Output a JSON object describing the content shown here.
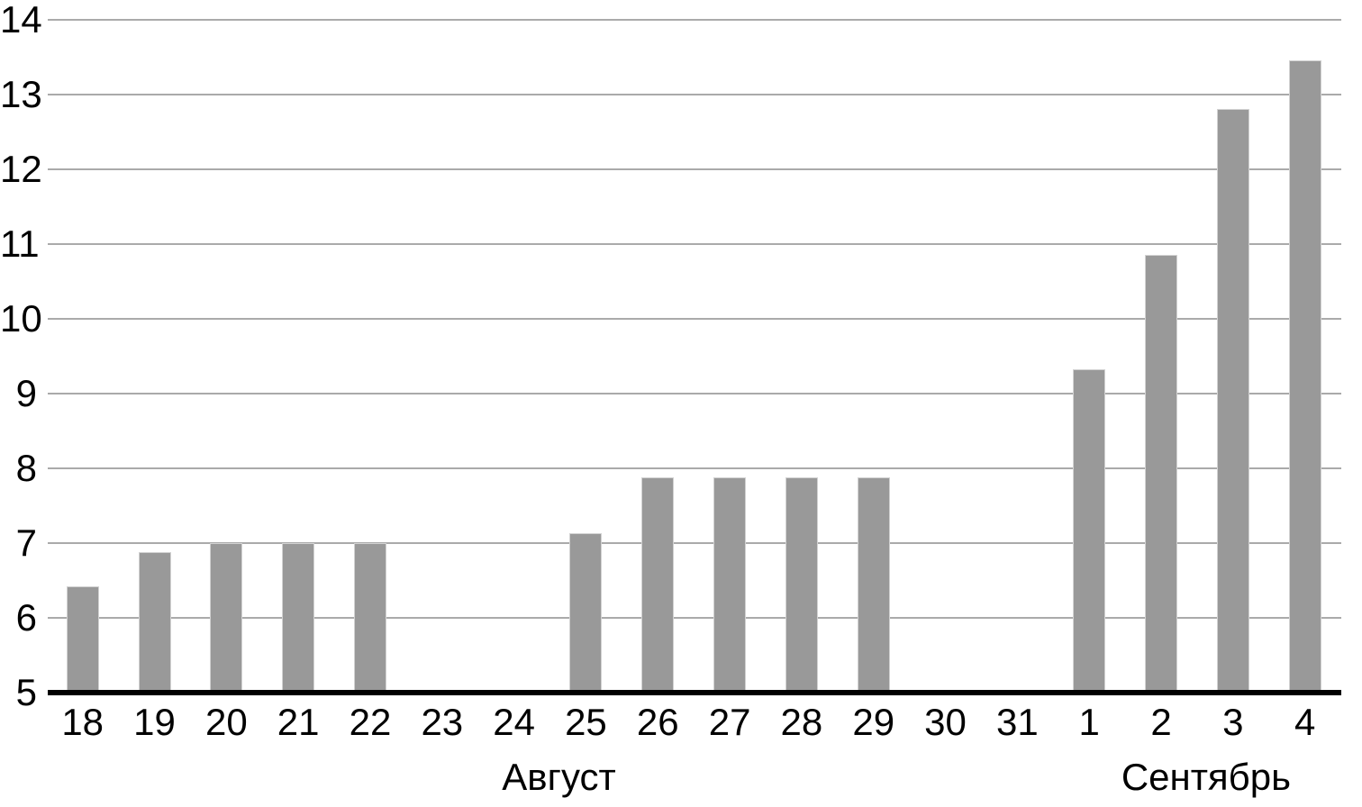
{
  "chart_data": {
    "type": "bar",
    "title": "",
    "xlabel": "",
    "ylabel": "",
    "categories": [
      "18",
      "19",
      "20",
      "21",
      "22",
      "23",
      "24",
      "25",
      "26",
      "27",
      "28",
      "29",
      "30",
      "31",
      "1",
      "2",
      "3",
      "4"
    ],
    "values": [
      6.43,
      6.88,
      7.0,
      7.0,
      7.0,
      null,
      null,
      7.14,
      7.88,
      7.88,
      7.88,
      7.88,
      null,
      null,
      9.33,
      10.86,
      12.81,
      13.46
    ],
    "y_axis": {
      "min": 5,
      "max": 14,
      "ticks": [
        5,
        6,
        7,
        8,
        9,
        10,
        11,
        12,
        13,
        14
      ]
    },
    "month_groups": [
      {
        "label": "Август",
        "start_index": 0,
        "end_index": 13
      },
      {
        "label": "Сентябрь",
        "start_index": 14,
        "end_index": 17
      }
    ],
    "legend": null,
    "grid": true,
    "colors": {
      "bar_fill": "#999999",
      "bar_edge": "#d2d2d2",
      "gridline": "#aaaaaa",
      "axis_line": "#000000",
      "text": "#000000"
    }
  }
}
